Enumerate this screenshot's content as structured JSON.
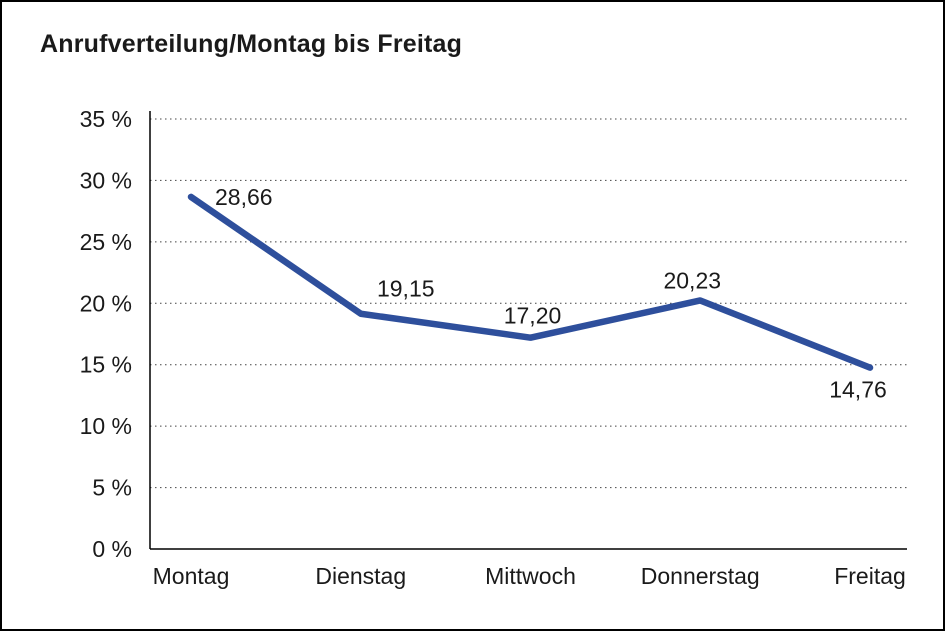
{
  "title": "Anrufverteilung/Montag bis Freitag",
  "chart_data": {
    "type": "line",
    "title": "Anrufverteilung/Montag bis Freitag",
    "categories": [
      "Montag",
      "Dienstag",
      "Mittwoch",
      "Donnerstag",
      "Freitag"
    ],
    "values": [
      28.66,
      19.15,
      17.2,
      20.23,
      14.76
    ],
    "value_labels": [
      "28,66",
      "19,15",
      "17,20",
      "20,23",
      "14,76"
    ],
    "ylim": [
      0,
      35
    ],
    "ytick_step": 5,
    "ytick_labels": [
      "0 %",
      "5 %",
      "10 %",
      "15 %",
      "20 %",
      "25 %",
      "30 %",
      "35 %"
    ],
    "xlabel": "",
    "ylabel": "",
    "grid": "dotted-horizontal",
    "legend": "none",
    "line_color": "#2E4F9C",
    "text_color": "#1a1a1a",
    "background_color": "#ffffff"
  }
}
